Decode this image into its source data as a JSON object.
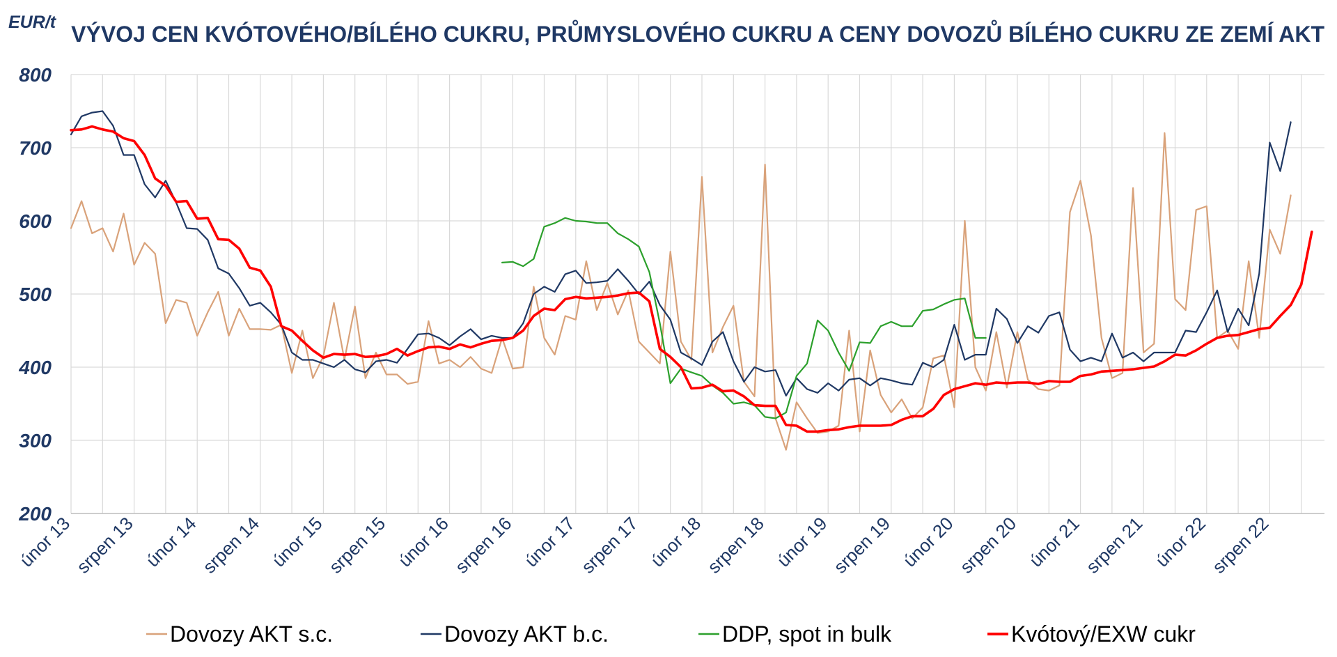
{
  "chart_data": {
    "type": "line",
    "title": "VÝVOJ CEN KVÓTOVÉHO/BÍLÉHO CUKRU, PRŮMYSLOVÉHO CUKRU A CENY DOVOZŮ BÍLÉHO CUKRU ZE ZEMÍ AKT",
    "unit_label": "EUR/t",
    "ylim": [
      200,
      800
    ],
    "yticks": [
      200,
      300,
      400,
      500,
      600,
      700,
      800
    ],
    "x_start": "únor 13",
    "n_months": 120,
    "xtick_labels": [
      "únor 13",
      "srpen 13",
      "únor 14",
      "srpen 14",
      "únor 15",
      "srpen 15",
      "únor 16",
      "srpen 16",
      "únor 17",
      "srpen 17",
      "únor 18",
      "srpen 18",
      "únor 19",
      "srpen 19",
      "únor 20",
      "srpen 20",
      "únor 21",
      "srpen 21",
      "únor 22",
      "srpen 22"
    ],
    "grid": "vertical-monthly-and-horizontal",
    "legend_position": "bottom",
    "series": [
      {
        "name": "Dovozy AKT s.c.",
        "color": "#d9a27a",
        "width": 2.2,
        "start_index": 0,
        "values": [
          590,
          627,
          583,
          590,
          558,
          610,
          540,
          570,
          555,
          460,
          492,
          488,
          443,
          475,
          503,
          443,
          480,
          452,
          452,
          451,
          458,
          392,
          450,
          385,
          415,
          488,
          410,
          483,
          385,
          420,
          390,
          390,
          377,
          380,
          463,
          405,
          410,
          400,
          414,
          398,
          392,
          440,
          398,
          400,
          510,
          440,
          417,
          470,
          465,
          545,
          478,
          515,
          472,
          505,
          435,
          420,
          405,
          558,
          435,
          410,
          660,
          420,
          455,
          484,
          380,
          360,
          677,
          330,
          287,
          352,
          330,
          310,
          312,
          320,
          450,
          312,
          423,
          362,
          338,
          356,
          330,
          345,
          412,
          416,
          345,
          600,
          400,
          368,
          448,
          372,
          448,
          383,
          370,
          368,
          375,
          612,
          655,
          580,
          440,
          385,
          392,
          645,
          420,
          432,
          720,
          493,
          478,
          615,
          620,
          440,
          450,
          425,
          545,
          440,
          588,
          555,
          635
        ]
      },
      {
        "name": "Dovozy AKT b.c.",
        "color": "#1f3864",
        "width": 2.2,
        "start_index": 0,
        "values": [
          718,
          743,
          748,
          750,
          730,
          690,
          690,
          650,
          632,
          655,
          625,
          590,
          589,
          574,
          535,
          528,
          508,
          484,
          488,
          475,
          458,
          420,
          410,
          410,
          405,
          400,
          410,
          397,
          393,
          408,
          410,
          406,
          425,
          445,
          446,
          440,
          430,
          442,
          452,
          438,
          443,
          440,
          440,
          460,
          500,
          510,
          503,
          527,
          532,
          515,
          516,
          518,
          534,
          518,
          500,
          517,
          485,
          465,
          420,
          412,
          403,
          435,
          448,
          408,
          380,
          400,
          394,
          396,
          361,
          385,
          370,
          365,
          378,
          368,
          383,
          385,
          375,
          385,
          382,
          378,
          376,
          406,
          400,
          410,
          458,
          410,
          417,
          417,
          480,
          466,
          433,
          456,
          447,
          470,
          475,
          424,
          408,
          413,
          408,
          446,
          413,
          420,
          408,
          420,
          420,
          420,
          450,
          448,
          475,
          505,
          448,
          480,
          457,
          528,
          707,
          668,
          735
        ]
      },
      {
        "name": "DDP, spot in bulk",
        "color": "#2ca02c",
        "width": 2.2,
        "start_index": 41,
        "values": [
          543,
          544,
          538,
          548,
          592,
          597,
          604,
          600,
          599,
          597,
          597,
          583,
          575,
          565,
          530,
          460,
          378,
          398,
          393,
          388,
          375,
          365,
          350,
          352,
          348,
          332,
          330,
          338,
          388,
          405,
          464,
          450,
          420,
          395,
          434,
          433,
          456,
          462,
          456,
          456,
          477,
          479,
          486,
          492,
          494,
          440,
          440
        ]
      },
      {
        "name": "Kvótový/EXW cukr",
        "color": "#ff0000",
        "width": 3.6,
        "start_index": 0,
        "values": [
          724,
          725,
          729,
          725,
          722,
          713,
          709,
          690,
          658,
          648,
          626,
          627,
          603,
          604,
          575,
          574,
          562,
          536,
          532,
          510,
          456,
          450,
          436,
          423,
          413,
          418,
          417,
          418,
          414,
          415,
          418,
          425,
          416,
          422,
          427,
          428,
          425,
          431,
          427,
          432,
          436,
          437,
          440,
          450,
          470,
          480,
          478,
          493,
          496,
          494,
          495,
          496,
          498,
          501,
          502,
          490,
          425,
          414,
          400,
          371,
          372,
          376,
          367,
          368,
          360,
          348,
          347,
          347,
          321,
          320,
          312,
          312,
          314,
          315,
          318,
          320,
          320,
          320,
          321,
          328,
          333,
          333,
          343,
          362,
          370,
          374,
          378,
          376,
          379,
          378,
          379,
          379,
          377,
          381,
          380,
          380,
          388,
          390,
          394,
          395,
          396,
          397,
          399,
          401,
          408,
          417,
          416,
          423,
          432,
          440,
          443,
          444,
          448,
          452,
          454,
          470,
          485,
          513,
          585
        ]
      }
    ]
  }
}
